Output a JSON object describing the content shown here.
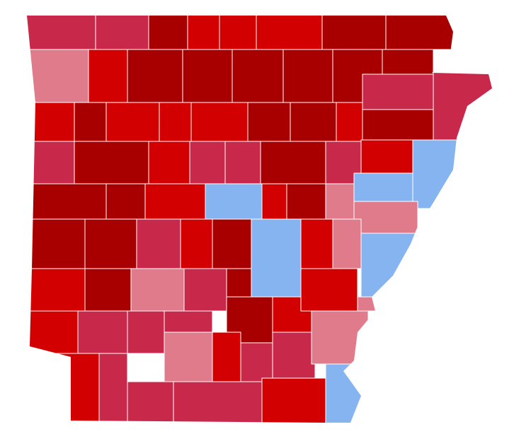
{
  "map": {
    "shades": [
      "#a80000",
      "#d20000",
      "#c8294a",
      "#e07b8c",
      "#86b4f0"
    ]
  }
}
